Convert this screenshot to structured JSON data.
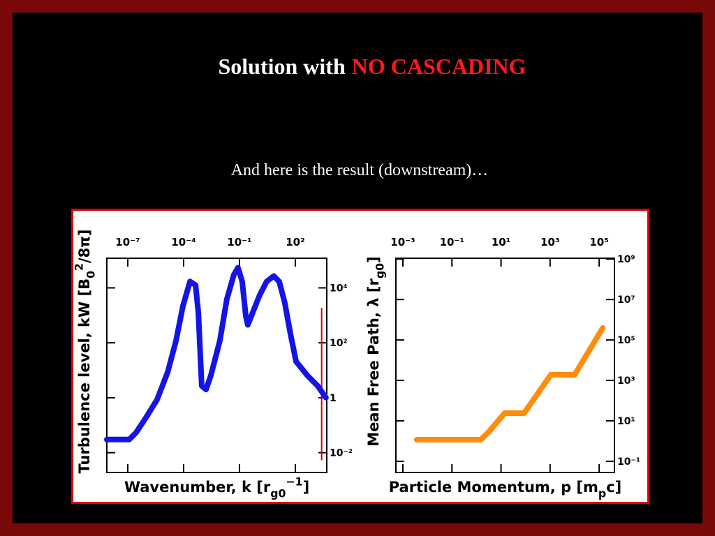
{
  "slide": {
    "title": [
      "Solution with",
      "NO CASCADING"
    ],
    "subtitle": "And here is the result (downstream)…"
  },
  "chart_data": [
    {
      "type": "line",
      "xscale": "log",
      "yscale": "log",
      "xtick_side": "top",
      "ytick_side": "right",
      "xlabel": [
        {
          "text": "Wavenumber, k [r"
        },
        {
          "text": "g0",
          "shift": "sub"
        },
        {
          "text": "−1",
          "shift": "super"
        },
        {
          "text": "]"
        }
      ],
      "ylabel": [
        {
          "text": "Turbulence level, kW [B"
        },
        {
          "text": "0",
          "shift": "sub"
        },
        {
          "text": "2",
          "shift": "super"
        },
        {
          "text": "/8π]"
        }
      ],
      "xlim": [
        7.5e-09,
        4900
      ],
      "ylim": [
        0.0019,
        120000
      ],
      "xticks": [
        {
          "value": 1e-07,
          "label": "10⁻⁷"
        },
        {
          "value": 0.0001,
          "label": "10⁻⁴"
        },
        {
          "value": 0.1,
          "label": "10⁻¹"
        },
        {
          "value": 100,
          "label": "10²"
        }
      ],
      "yticks": [
        {
          "value": 10000,
          "label": "10⁴"
        },
        {
          "value": 100,
          "label": "10²"
        },
        1,
        {
          "value": 0.01,
          "label": "10⁻²"
        }
      ],
      "color": "#1414e6",
      "x": [
        7.5e-09,
        1.19e-07,
        2.8e-07,
        1e-06,
        3.7e-06,
        1.4e-05,
        3.9e-05,
        9.2e-05,
        0.00022,
        0.00044,
        0.00062,
        0.00094,
        0.0016,
        0.0029,
        0.0089,
        0.021,
        0.05,
        0.083,
        0.14,
        0.22,
        0.28,
        0.51,
        1.2,
        2.9,
        6.9,
        13.7,
        27,
        55,
        110,
        440,
        1600,
        4400
      ],
      "values": [
        0.03,
        0.03,
        0.054,
        0.2,
        0.84,
        8.6,
        120,
        2200,
        17000,
        12600,
        1230,
        2.7,
        2.0,
        6.5,
        120,
        3900,
        30000,
        54000,
        17000,
        920,
        450,
        1230,
        5300,
        17000,
        27000,
        17000,
        2900,
        210,
        21,
        6.5,
        2.7,
        1.0
      ],
      "vline": {
        "x": 2600,
        "y": [
          0.0053,
          1850
        ],
        "color": "#e00000"
      }
    },
    {
      "type": "line",
      "xscale": "log",
      "yscale": "log",
      "xtick_side": "top",
      "ytick_side": "right",
      "xlabel": [
        {
          "text": "Particle Momentum, p [m"
        },
        {
          "text": "p",
          "shift": "sub"
        },
        {
          "text": "c]"
        }
      ],
      "ylabel": [
        {
          "text": "Mean Free Path, λ [r"
        },
        {
          "text": "g0",
          "shift": "sub"
        },
        {
          "text": "]"
        }
      ],
      "xlim": [
        0.00052,
        420000
      ],
      "ylim": [
        0.028,
        1100000000.0
      ],
      "xticks": [
        {
          "value": 0.001,
          "label": "10⁻³"
        },
        {
          "value": 0.1,
          "label": "10⁻¹"
        },
        {
          "value": 10,
          "label": "10¹"
        },
        {
          "value": 1000,
          "label": "10³"
        },
        {
          "value": 100000,
          "label": "10⁵"
        }
      ],
      "yticks": [
        {
          "value": 1000000000.0,
          "label": "10⁹"
        },
        {
          "value": 10000000.0,
          "label": "10⁷"
        },
        {
          "value": 100000.0,
          "label": "10⁵"
        },
        {
          "value": 1000,
          "label": "10³"
        },
        {
          "value": 10,
          "label": "10¹"
        },
        {
          "value": 0.1,
          "label": "10⁻¹"
        }
      ],
      "color": "#ff8c0a",
      "x": [
        0.0037,
        1.5,
        3.3,
        14,
        87,
        1070,
        10000,
        140000
      ],
      "values": [
        1.17,
        1.17,
        3.0,
        24,
        24,
        1900,
        1900,
        390000
      ]
    }
  ]
}
